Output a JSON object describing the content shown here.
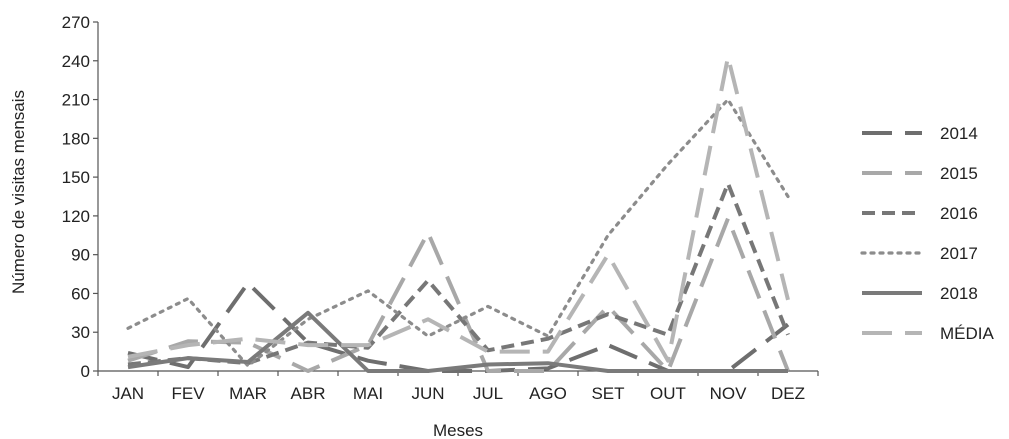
{
  "chart_data": {
    "type": "line",
    "title": "",
    "xlabel": "Meses",
    "ylabel": "Número de visitas mensais",
    "ylim": [
      0,
      270
    ],
    "yticks": [
      0,
      30,
      60,
      90,
      120,
      150,
      180,
      210,
      240,
      270
    ],
    "grid": false,
    "legend_position": "right",
    "categories": [
      "JAN",
      "FEV",
      "MAR",
      "ABR",
      "MAI",
      "JUN",
      "JUL",
      "AGO",
      "SET",
      "OUT",
      "NOV",
      "DEZ"
    ],
    "series": [
      {
        "name": "2014",
        "color": "#6e6e6e",
        "style": "long-dash",
        "values": [
          14,
          3,
          68,
          22,
          8,
          0,
          0,
          2,
          20,
          0,
          0,
          36
        ]
      },
      {
        "name": "2015",
        "color": "#a8a8a8",
        "style": "long-dash",
        "values": [
          8,
          23,
          22,
          0,
          20,
          107,
          0,
          0,
          50,
          0,
          118,
          0
        ]
      },
      {
        "name": "2016",
        "color": "#777777",
        "style": "dash",
        "values": [
          5,
          10,
          6,
          22,
          18,
          70,
          16,
          25,
          44,
          28,
          145,
          28
        ]
      },
      {
        "name": "2017",
        "color": "#8c8c8c",
        "style": "dot",
        "values": [
          33,
          56,
          4,
          40,
          62,
          27,
          50,
          27,
          105,
          160,
          210,
          135
        ]
      },
      {
        "name": "2018",
        "color": "#7a7a7a",
        "style": "solid",
        "values": [
          3,
          10,
          7,
          45,
          0,
          0,
          5,
          6,
          0,
          0,
          0,
          0
        ]
      },
      {
        "name": "MÉDIA",
        "color": "#b5b5b5",
        "style": "long-dash",
        "values": [
          11,
          20,
          25,
          20,
          20,
          40,
          15,
          15,
          90,
          8,
          243,
          55
        ]
      }
    ]
  }
}
